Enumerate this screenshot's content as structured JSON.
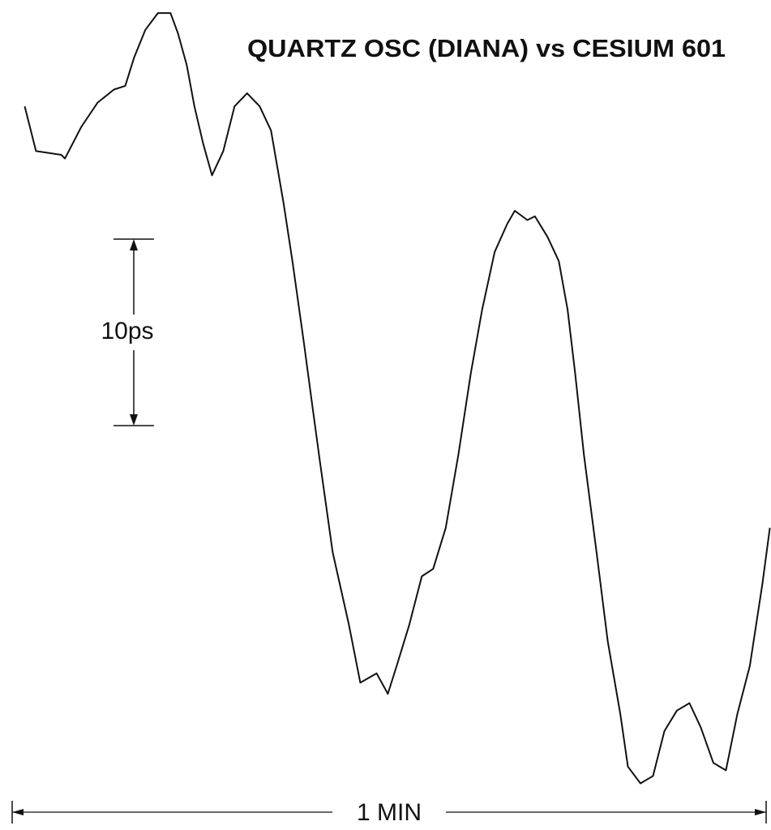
{
  "chart_data": {
    "type": "line",
    "title": "QUARTZ OSC (DIANA) vs CESIUM 601",
    "x": [
      1.0,
      1.9,
      3.9,
      4.2,
      5.5,
      6.8,
      8.1,
      9.0,
      9.7,
      10.6,
      11.6,
      12.6,
      13.2,
      13.9,
      14.5,
      15.2,
      15.9,
      16.8,
      17.7,
      18.7,
      19.7,
      20.6,
      21.6,
      22.3,
      23.2,
      23.9,
      24.5,
      25.5,
      26.8,
      27.7,
      29.0,
      29.9,
      30.6,
      31.6,
      32.6,
      33.5,
      34.5,
      35.5,
      36.5,
      37.4,
      38.4,
      39.4,
      40.0,
      41.0,
      41.6,
      42.6,
      43.5,
      44.2,
      44.8,
      45.5,
      46.5,
      47.4,
      48.4,
      49.0,
      50.0,
      51.0,
      51.9,
      52.9,
      53.9,
      54.8,
      55.8,
      56.8,
      57.7,
      58.7,
      59.7,
      60.3
    ],
    "series": [
      {
        "color": "#111111",
        "values": [
          36.3,
          33.9,
          33.7,
          33.5,
          35.2,
          36.5,
          37.2,
          37.4,
          38.9,
          40.4,
          41.3,
          41.3,
          40.2,
          38.5,
          36.3,
          34.3,
          32.6,
          33.9,
          36.3,
          37.0,
          36.3,
          35.0,
          31.1,
          28.0,
          23.7,
          20.2,
          17.2,
          12.4,
          8.5,
          5.4,
          5.9,
          4.8,
          6.3,
          8.5,
          11.1,
          11.5,
          13.7,
          17.6,
          22.0,
          25.4,
          28.5,
          30.0,
          30.7,
          30.2,
          30.4,
          29.3,
          28.0,
          25.4,
          22.0,
          17.6,
          12.4,
          7.6,
          3.7,
          0.9,
          0.0,
          0.4,
          2.8,
          3.9,
          4.3,
          3.0,
          1.1,
          0.7,
          3.7,
          6.3,
          10.7,
          13.7
        ]
      }
    ],
    "xlim": [
      0,
      60
    ],
    "ylim": [
      -2.5,
      42
    ],
    "y_scale_bar": {
      "label": "10ps",
      "value": 10
    },
    "x_scale_bar": {
      "label": "1 MIN",
      "value": 60
    }
  }
}
